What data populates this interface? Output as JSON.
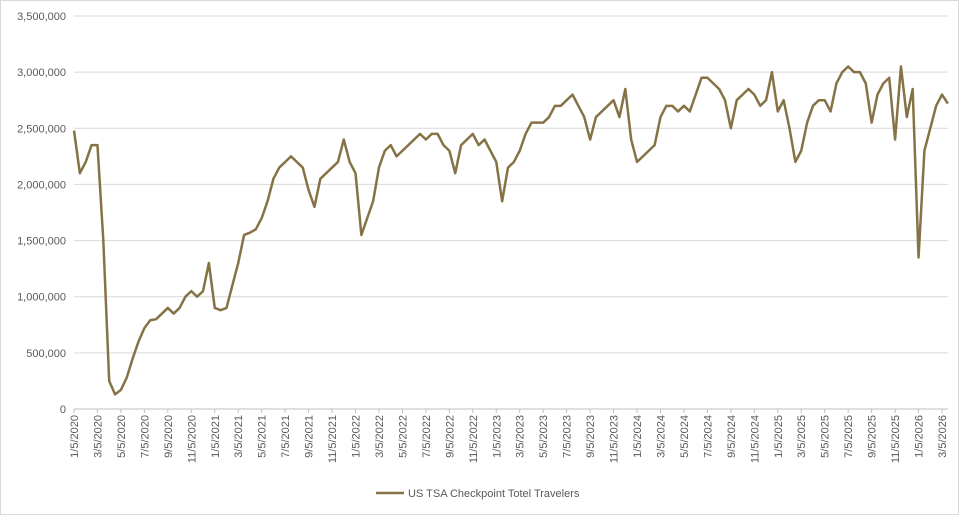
{
  "chart_data": {
    "type": "line",
    "categories": [
      "1/5/2020",
      null,
      null,
      null,
      "3/5/2020",
      null,
      null,
      null,
      "5/5/2020",
      null,
      null,
      null,
      "7/5/2020",
      null,
      null,
      null,
      "9/5/2020",
      null,
      null,
      null,
      "11/5/2020",
      null,
      null,
      null,
      "1/5/2021",
      null,
      null,
      null,
      "3/5/2021",
      null,
      null,
      null,
      "5/5/2021",
      null,
      null,
      null,
      "7/5/2021",
      null,
      null,
      null,
      "9/5/2021",
      null,
      null,
      null,
      "11/5/2021",
      null,
      null,
      null,
      "1/5/2022",
      null,
      null,
      null,
      "3/5/2022",
      null,
      null,
      null,
      "5/5/2022",
      null,
      null,
      null,
      "7/5/2022",
      null,
      null,
      null,
      "9/5/2022",
      null,
      null,
      null,
      "11/5/2022",
      null,
      null,
      null,
      "1/5/2023",
      null,
      null,
      null,
      "3/5/2023",
      null,
      null,
      null,
      "5/5/2023",
      null,
      null,
      null,
      "7/5/2023",
      null,
      null,
      null,
      "9/5/2023",
      null,
      null,
      null,
      "11/5/2023",
      null,
      null,
      null,
      "1/5/2024",
      null,
      null,
      null,
      "3/5/2024",
      null,
      null,
      null,
      "5/5/2024",
      null,
      null,
      null,
      "7/5/2024",
      null,
      null,
      null,
      "9/5/2024",
      null,
      null,
      null,
      "11/5/2024",
      null,
      null,
      null,
      "1/5/2025",
      null,
      null,
      null,
      "3/5/2025",
      null,
      null,
      null,
      "5/5/2025",
      null,
      null,
      null,
      "7/5/2025",
      null,
      null,
      null,
      "9/5/2025",
      null,
      null,
      null,
      "11/5/2025",
      null,
      null,
      null,
      "1/5/2026",
      null,
      null,
      null,
      "3/5/2026",
      null
    ],
    "series": [
      {
        "name": "US TSA Checkpoint Totel Travelers",
        "color": "#857346",
        "values": [
          2480000,
          2100000,
          2200000,
          2350000,
          2350000,
          1500000,
          250000,
          130000,
          170000,
          280000,
          450000,
          600000,
          720000,
          790000,
          800000,
          850000,
          900000,
          850000,
          900000,
          1000000,
          1050000,
          1000000,
          1050000,
          1300000,
          900000,
          880000,
          900000,
          1100000,
          1300000,
          1550000,
          1570000,
          1600000,
          1700000,
          1850000,
          2050000,
          2150000,
          2200000,
          2250000,
          2200000,
          2150000,
          1950000,
          1800000,
          2050000,
          2100000,
          2150000,
          2200000,
          2400000,
          2200000,
          2100000,
          1550000,
          1700000,
          1850000,
          2150000,
          2300000,
          2350000,
          2250000,
          2300000,
          2350000,
          2400000,
          2450000,
          2400000,
          2450000,
          2450000,
          2350000,
          2300000,
          2100000,
          2350000,
          2400000,
          2450000,
          2350000,
          2400000,
          2300000,
          2200000,
          1850000,
          2150000,
          2200000,
          2300000,
          2450000,
          2550000,
          2550000,
          2550000,
          2600000,
          2700000,
          2700000,
          2750000,
          2800000,
          2700000,
          2600000,
          2400000,
          2600000,
          2650000,
          2700000,
          2750000,
          2600000,
          2850000,
          2400000,
          2200000,
          2250000,
          2300000,
          2350000,
          2600000,
          2700000,
          2700000,
          2650000,
          2700000,
          2650000,
          2800000,
          2950000,
          2950000,
          2900000,
          2850000,
          2750000,
          2500000,
          2750000,
          2800000,
          2850000,
          2800000,
          2700000,
          2750000,
          3000000,
          2650000,
          2750000,
          2500000,
          2200000,
          2300000,
          2550000,
          2700000,
          2750000,
          2750000,
          2650000,
          2900000,
          3000000,
          3050000,
          3000000,
          3000000,
          2900000,
          2550000,
          2800000,
          2900000,
          2950000,
          2400000,
          3050000,
          2600000,
          2850000,
          1350000,
          2300000,
          2500000,
          2700000,
          2800000,
          2720000
        ]
      }
    ],
    "ylim": [
      0,
      3500000
    ],
    "yticks": [
      0,
      {
        "value": 500000,
        "label": "500,000"
      },
      {
        "value": 1000000,
        "label": "1,000,000"
      },
      {
        "value": 1500000,
        "label": "1,500,000"
      },
      {
        "value": 2000000,
        "label": "2,000,000"
      },
      {
        "value": 2500000,
        "label": "2,500,000"
      },
      {
        "value": 3000000,
        "label": "3,000,000"
      },
      {
        "value": 3500000,
        "label": "3,500,000"
      }
    ],
    "grid": true,
    "legend": "bottom"
  }
}
